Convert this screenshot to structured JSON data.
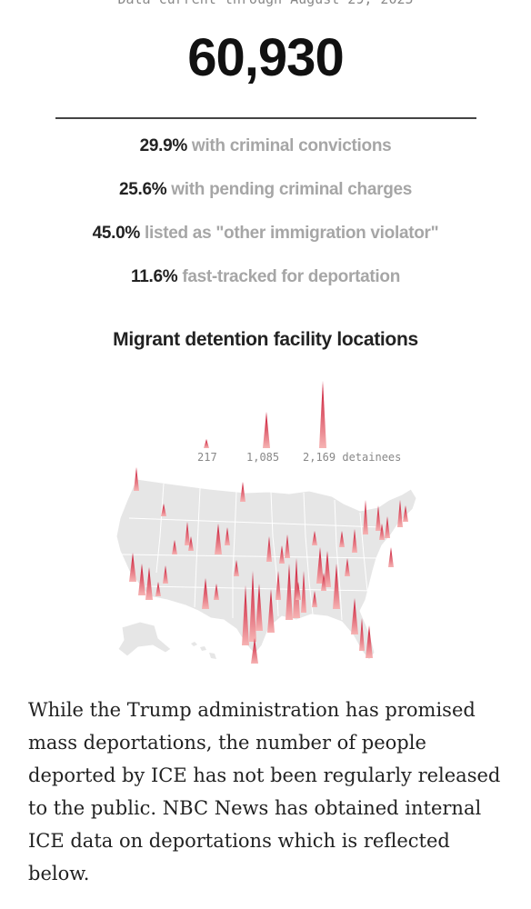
{
  "header_note": "Data current through August 29, 2025",
  "total": "60,930",
  "stats": [
    {
      "pct": "29.9%",
      "desc": "with criminal convictions"
    },
    {
      "pct": "25.6%",
      "desc": "with pending criminal charges"
    },
    {
      "pct": "45.0%",
      "desc": "listed as \"other immigration violator\""
    },
    {
      "pct": "11.6%",
      "desc": "fast-tracked for deportation"
    }
  ],
  "map_title": "Migrant detention facility locations",
  "legend": {
    "labels": [
      "217",
      "1,085",
      "2,169 detainees"
    ],
    "values": [
      217,
      1085,
      2169
    ]
  },
  "colors": {
    "spike_top": "#c8102e",
    "spike_base": "#f6b3b3",
    "land": "#e6e6e6",
    "border": "#ffffff"
  },
  "body_text": "While the Trump administration has promised mass deportations, the number of people deported by ICE has not been regularly released to the public. NBC News has obtained internal ICE data on deportations which is reflected below."
}
